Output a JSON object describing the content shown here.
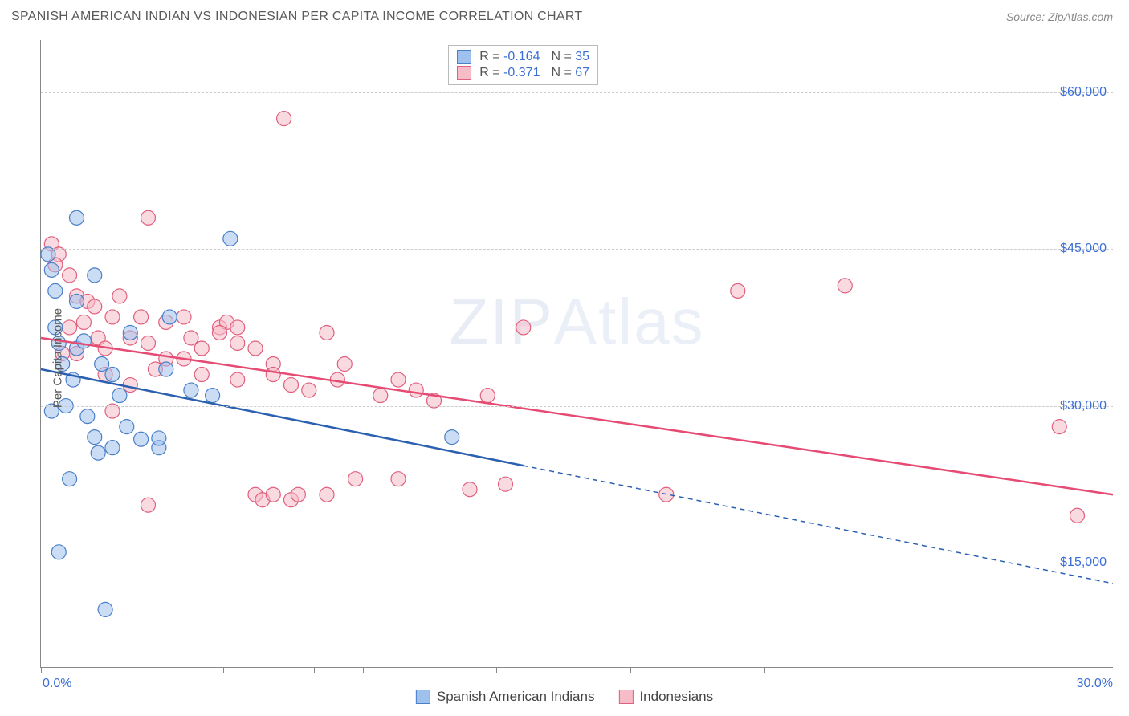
{
  "header": {
    "title": "SPANISH AMERICAN INDIAN VS INDONESIAN PER CAPITA INCOME CORRELATION CHART",
    "source": "Source: ZipAtlas.com"
  },
  "watermark": {
    "bold": "ZIP",
    "light": "Atlas"
  },
  "chart": {
    "type": "scatter",
    "ylabel": "Per Capita Income",
    "xlim": [
      0,
      30
    ],
    "ylim": [
      5000,
      65000
    ],
    "xticks_pct": [
      0,
      8.5,
      17,
      25.5,
      30,
      42.5,
      55,
      67.5,
      80,
      92.5
    ],
    "xtick_labels_shown": {
      "0": "0.0%",
      "100": "30.0%"
    },
    "yticks": [
      15000,
      30000,
      45000,
      60000
    ],
    "ytick_labels": [
      "$15,000",
      "$30,000",
      "$45,000",
      "$60,000"
    ],
    "grid_color": "#cccccc",
    "axis_color": "#888888",
    "background_color": "#ffffff",
    "marker_radius": 9,
    "marker_opacity": 0.55,
    "series": {
      "blue": {
        "name": "Spanish American Indians",
        "fill": "#9fc1ed",
        "stroke": "#4a7fc9",
        "R": "-0.164",
        "N": "35",
        "trend": {
          "y_at_x0": 33500,
          "y_at_x30": 13000,
          "solid_until_x": 13.5,
          "color": "#2b5fb0",
          "width": 2.5
        },
        "points": [
          {
            "x": 0.2,
            "y": 44500
          },
          {
            "x": 0.3,
            "y": 43000
          },
          {
            "x": 0.4,
            "y": 41000
          },
          {
            "x": 0.5,
            "y": 36000
          },
          {
            "x": 0.6,
            "y": 34000
          },
          {
            "x": 0.7,
            "y": 30000
          },
          {
            "x": 0.3,
            "y": 29500
          },
          {
            "x": 1.0,
            "y": 48000
          },
          {
            "x": 1.5,
            "y": 42500
          },
          {
            "x": 1.0,
            "y": 35500
          },
          {
            "x": 1.2,
            "y": 36200
          },
          {
            "x": 0.8,
            "y": 23000
          },
          {
            "x": 0.5,
            "y": 16000
          },
          {
            "x": 1.8,
            "y": 10500
          },
          {
            "x": 1.3,
            "y": 29000
          },
          {
            "x": 1.5,
            "y": 27000
          },
          {
            "x": 1.6,
            "y": 25500
          },
          {
            "x": 2.0,
            "y": 33000
          },
          {
            "x": 2.2,
            "y": 31000
          },
          {
            "x": 2.4,
            "y": 28000
          },
          {
            "x": 2.0,
            "y": 26000
          },
          {
            "x": 2.8,
            "y": 26800
          },
          {
            "x": 3.3,
            "y": 26000
          },
          {
            "x": 3.3,
            "y": 26900
          },
          {
            "x": 3.5,
            "y": 33500
          },
          {
            "x": 3.6,
            "y": 38500
          },
          {
            "x": 4.2,
            "y": 31500
          },
          {
            "x": 4.8,
            "y": 31000
          },
          {
            "x": 5.3,
            "y": 46000
          },
          {
            "x": 2.5,
            "y": 37000
          },
          {
            "x": 1.0,
            "y": 40000
          },
          {
            "x": 0.4,
            "y": 37500
          },
          {
            "x": 11.5,
            "y": 27000
          },
          {
            "x": 0.9,
            "y": 32500
          },
          {
            "x": 1.7,
            "y": 34000
          }
        ]
      },
      "pink": {
        "name": "Indonesians",
        "fill": "#f6bcc8",
        "stroke": "#e0607d",
        "R": "-0.371",
        "N": "67",
        "trend": {
          "y_at_x0": 36500,
          "y_at_x30": 21500,
          "solid_until_x": 30,
          "color": "#e54b73",
          "width": 2.5
        },
        "points": [
          {
            "x": 0.3,
            "y": 45500
          },
          {
            "x": 0.5,
            "y": 44500
          },
          {
            "x": 0.4,
            "y": 43500
          },
          {
            "x": 0.8,
            "y": 42500
          },
          {
            "x": 1.0,
            "y": 40500
          },
          {
            "x": 1.3,
            "y": 40000
          },
          {
            "x": 1.5,
            "y": 39500
          },
          {
            "x": 1.2,
            "y": 38000
          },
          {
            "x": 0.8,
            "y": 37500
          },
          {
            "x": 1.6,
            "y": 36500
          },
          {
            "x": 1.8,
            "y": 35500
          },
          {
            "x": 2.0,
            "y": 38500
          },
          {
            "x": 2.2,
            "y": 40500
          },
          {
            "x": 2.5,
            "y": 36500
          },
          {
            "x": 2.8,
            "y": 38500
          },
          {
            "x": 3.0,
            "y": 48000
          },
          {
            "x": 3.2,
            "y": 33500
          },
          {
            "x": 3.5,
            "y": 38000
          },
          {
            "x": 4.0,
            "y": 34500
          },
          {
            "x": 4.0,
            "y": 38500
          },
          {
            "x": 4.5,
            "y": 35500
          },
          {
            "x": 5.0,
            "y": 37500
          },
          {
            "x": 5.2,
            "y": 38000
          },
          {
            "x": 5.0,
            "y": 37000
          },
          {
            "x": 5.5,
            "y": 36000
          },
          {
            "x": 5.5,
            "y": 37500
          },
          {
            "x": 5.5,
            "y": 32500
          },
          {
            "x": 6.0,
            "y": 35500
          },
          {
            "x": 6.5,
            "y": 34000
          },
          {
            "x": 6.5,
            "y": 33000
          },
          {
            "x": 6.8,
            "y": 57500
          },
          {
            "x": 7.0,
            "y": 32000
          },
          {
            "x": 7.5,
            "y": 31500
          },
          {
            "x": 8.0,
            "y": 37000
          },
          {
            "x": 8.3,
            "y": 32500
          },
          {
            "x": 8.5,
            "y": 34000
          },
          {
            "x": 8.8,
            "y": 23000
          },
          {
            "x": 9.5,
            "y": 31000
          },
          {
            "x": 10.0,
            "y": 32500
          },
          {
            "x": 10.0,
            "y": 23000
          },
          {
            "x": 10.5,
            "y": 31500
          },
          {
            "x": 11.0,
            "y": 30500
          },
          {
            "x": 12.0,
            "y": 22000
          },
          {
            "x": 12.5,
            "y": 31000
          },
          {
            "x": 13.0,
            "y": 22500
          },
          {
            "x": 13.5,
            "y": 37500
          },
          {
            "x": 17.5,
            "y": 21500
          },
          {
            "x": 19.5,
            "y": 41000
          },
          {
            "x": 22.5,
            "y": 41500
          },
          {
            "x": 28.5,
            "y": 28000
          },
          {
            "x": 29.0,
            "y": 19500
          },
          {
            "x": 3.0,
            "y": 20500
          },
          {
            "x": 6.0,
            "y": 21500
          },
          {
            "x": 6.2,
            "y": 21000
          },
          {
            "x": 7.0,
            "y": 21000
          },
          {
            "x": 7.2,
            "y": 21500
          },
          {
            "x": 4.5,
            "y": 33000
          },
          {
            "x": 2.0,
            "y": 29500
          },
          {
            "x": 1.0,
            "y": 35000
          },
          {
            "x": 1.8,
            "y": 33000
          },
          {
            "x": 2.5,
            "y": 32000
          },
          {
            "x": 0.6,
            "y": 35000
          },
          {
            "x": 6.5,
            "y": 21500
          },
          {
            "x": 3.0,
            "y": 36000
          },
          {
            "x": 3.5,
            "y": 34500
          },
          {
            "x": 4.2,
            "y": 36500
          },
          {
            "x": 8.0,
            "y": 21500
          }
        ]
      }
    }
  }
}
